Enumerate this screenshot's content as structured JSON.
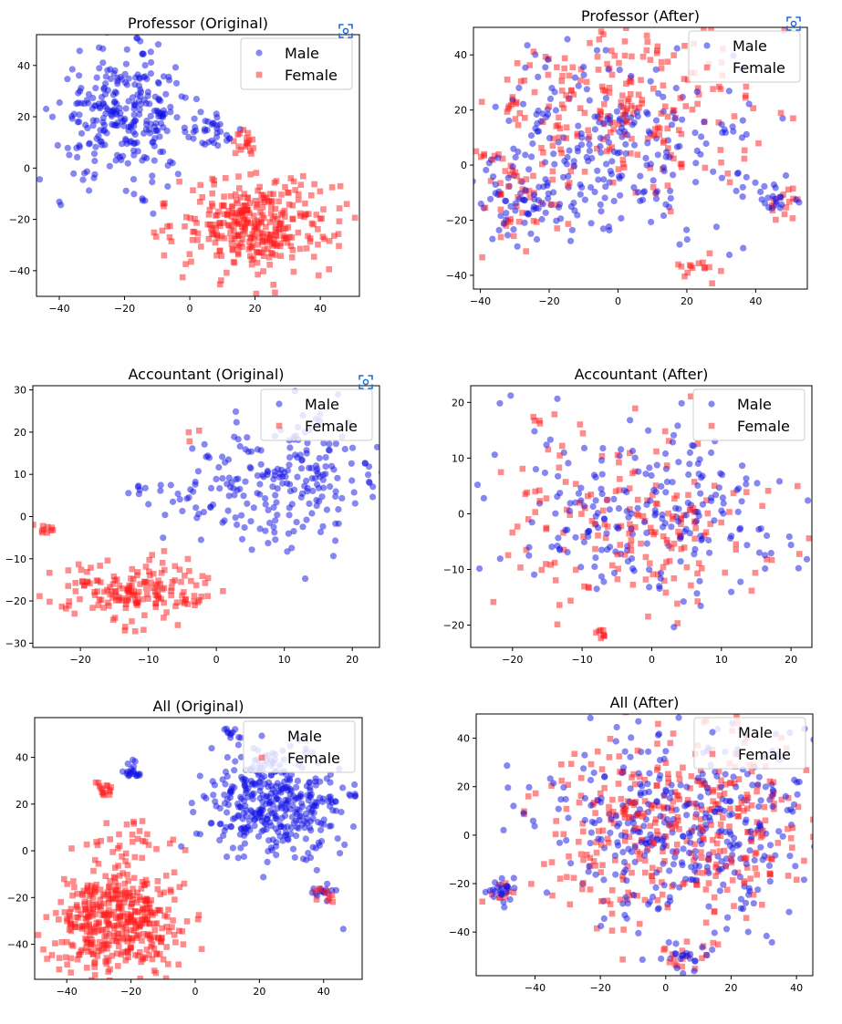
{
  "colors": {
    "male": "#1010e6",
    "female": "#ff1a1a",
    "axis": "#000000",
    "background": "#ffffff",
    "icon": "#1f6fd6"
  },
  "icon_names": [
    "screenshot-capture-icon"
  ],
  "chart_data": [
    {
      "type": "scatter",
      "title": "Professor (Original)",
      "xlabel": "",
      "ylabel": "",
      "xlim": [
        -47,
        52
      ],
      "ylim": [
        -50,
        52
      ],
      "xticks": [
        -40,
        -20,
        0,
        20,
        40
      ],
      "yticks": [
        -40,
        -20,
        0,
        20,
        40
      ],
      "legend": {
        "location": "top-right",
        "entries": [
          "Male",
          "Female"
        ]
      },
      "has_capture_icon": true,
      "series": [
        {
          "name": "Male",
          "marker": "circle",
          "clusters": [
            {
              "center": [
                -20,
                20
              ],
              "spread": [
                10,
                12
              ],
              "count": 280
            },
            {
              "center": [
                8,
                14
              ],
              "spread": [
                4,
                4
              ],
              "count": 30
            }
          ]
        },
        {
          "name": "Female",
          "marker": "square",
          "clusters": [
            {
              "center": [
                20,
                -22
              ],
              "spread": [
                12,
                9
              ],
              "count": 330
            },
            {
              "center": [
                16,
                10
              ],
              "spread": [
                2,
                3
              ],
              "count": 18
            },
            {
              "center": [
                -7,
                -14
              ],
              "spread": [
                1,
                1
              ],
              "count": 3
            }
          ]
        }
      ]
    },
    {
      "type": "scatter",
      "title": "Professor (After)",
      "xlabel": "",
      "ylabel": "",
      "xlim": [
        -42,
        55
      ],
      "ylim": [
        -45,
        50
      ],
      "xticks": [
        -40,
        -20,
        0,
        20,
        40
      ],
      "yticks": [
        -40,
        -20,
        0,
        20,
        40
      ],
      "legend": {
        "location": "top-right",
        "entries": [
          "Male",
          "Female"
        ]
      },
      "has_capture_icon": true,
      "series": [
        {
          "name": "Male",
          "marker": "circle",
          "clusters": [
            {
              "center": [
                0,
                5
              ],
              "spread": [
                20,
                18
              ],
              "count": 260
            },
            {
              "center": [
                -28,
                -12
              ],
              "spread": [
                7,
                8
              ],
              "count": 50
            },
            {
              "center": [
                45,
                -13
              ],
              "spread": [
                4,
                3
              ],
              "count": 20
            }
          ]
        },
        {
          "name": "Female",
          "marker": "square",
          "clusters": [
            {
              "center": [
                0,
                20
              ],
              "spread": [
                20,
                15
              ],
              "count": 230
            },
            {
              "center": [
                -28,
                -10
              ],
              "spread": [
                7,
                8
              ],
              "count": 50
            },
            {
              "center": [
                23,
                -38
              ],
              "spread": [
                3,
                2
              ],
              "count": 15
            },
            {
              "center": [
                48,
                -13
              ],
              "spread": [
                3,
                3
              ],
              "count": 15
            }
          ]
        }
      ]
    },
    {
      "type": "scatter",
      "title": "Accountant (Original)",
      "xlabel": "",
      "ylabel": "",
      "xlim": [
        -27,
        24
      ],
      "ylim": [
        -31,
        31
      ],
      "xticks": [
        -20,
        -10,
        0,
        10,
        20
      ],
      "yticks": [
        -30,
        -20,
        -10,
        0,
        10,
        20,
        30
      ],
      "legend": {
        "location": "top-right",
        "entries": [
          "Male",
          "Female"
        ]
      },
      "has_capture_icon": true,
      "series": [
        {
          "name": "Male",
          "marker": "circle",
          "clusters": [
            {
              "center": [
                10,
                8
              ],
              "spread": [
                7,
                8
              ],
              "count": 220
            },
            {
              "center": [
                -4,
                4
              ],
              "spread": [
                4,
                3
              ],
              "count": 20
            },
            {
              "center": [
                -12,
                6
              ],
              "spread": [
                1,
                1
              ],
              "count": 6
            }
          ]
        },
        {
          "name": "Female",
          "marker": "square",
          "clusters": [
            {
              "center": [
                -12,
                -18
              ],
              "spread": [
                6,
                4
              ],
              "count": 170
            },
            {
              "center": [
                -25,
                -3
              ],
              "spread": [
                0.6,
                0.6
              ],
              "count": 10
            },
            {
              "center": [
                -3,
                20
              ],
              "spread": [
                1,
                1
              ],
              "count": 3
            }
          ]
        }
      ]
    },
    {
      "type": "scatter",
      "title": "Accountant (After)",
      "xlabel": "",
      "ylabel": "",
      "xlim": [
        -26,
        23
      ],
      "ylim": [
        -24,
        23
      ],
      "xticks": [
        -20,
        -10,
        0,
        10,
        20
      ],
      "yticks": [
        -20,
        -10,
        0,
        10,
        20
      ],
      "legend": {
        "location": "top-right",
        "entries": [
          "Male",
          "Female"
        ]
      },
      "has_capture_icon": false,
      "series": [
        {
          "name": "Male",
          "marker": "circle",
          "clusters": [
            {
              "center": [
                0,
                0
              ],
              "spread": [
                11,
                8
              ],
              "count": 230
            }
          ]
        },
        {
          "name": "Female",
          "marker": "square",
          "clusters": [
            {
              "center": [
                -2,
                -2
              ],
              "spread": [
                10,
                8
              ],
              "count": 180
            },
            {
              "center": [
                -7,
                -21.5
              ],
              "spread": [
                0.6,
                0.5
              ],
              "count": 8
            },
            {
              "center": [
                -16,
                17
              ],
              "spread": [
                0.8,
                0.6
              ],
              "count": 5
            }
          ]
        }
      ]
    },
    {
      "type": "scatter",
      "title": "All (Original)",
      "xlabel": "",
      "ylabel": "",
      "xlim": [
        -50,
        52
      ],
      "ylim": [
        -55,
        57
      ],
      "xticks": [
        -40,
        -20,
        0,
        20,
        40
      ],
      "yticks": [
        -40,
        -20,
        0,
        20,
        40
      ],
      "legend": {
        "location": "top-right",
        "entries": [
          "Male",
          "Female"
        ]
      },
      "has_capture_icon": false,
      "series": [
        {
          "name": "Male",
          "marker": "circle",
          "clusters": [
            {
              "center": [
                25,
                20
              ],
              "spread": [
                11,
                12
              ],
              "count": 380
            },
            {
              "center": [
                -20,
                34
              ],
              "spread": [
                2,
                2
              ],
              "count": 20
            },
            {
              "center": [
                40,
                -18
              ],
              "spread": [
                2,
                2
              ],
              "count": 15
            },
            {
              "center": [
                12,
                50
              ],
              "spread": [
                2,
                2
              ],
              "count": 10
            }
          ]
        },
        {
          "name": "Female",
          "marker": "square",
          "clusters": [
            {
              "center": [
                -25,
                -30
              ],
              "spread": [
                11,
                11
              ],
              "count": 420
            },
            {
              "center": [
                -28,
                26
              ],
              "spread": [
                1.5,
                1.5
              ],
              "count": 15
            },
            {
              "center": [
                -20,
                5
              ],
              "spread": [
                6,
                6
              ],
              "count": 30
            },
            {
              "center": [
                40,
                -18
              ],
              "spread": [
                2,
                2
              ],
              "count": 10
            }
          ]
        }
      ]
    },
    {
      "type": "scatter",
      "title": "All (After)",
      "xlabel": "",
      "ylabel": "",
      "xlim": [
        -58,
        45
      ],
      "ylim": [
        -58,
        50
      ],
      "xticks": [
        -40,
        -20,
        0,
        20,
        40
      ],
      "yticks": [
        -40,
        -20,
        0,
        20,
        40
      ],
      "legend": {
        "location": "top-right",
        "entries": [
          "Male",
          "Female"
        ]
      },
      "has_capture_icon": false,
      "series": [
        {
          "name": "Male",
          "marker": "circle",
          "clusters": [
            {
              "center": [
                5,
                5
              ],
              "spread": [
                22,
                20
              ],
              "count": 380
            },
            {
              "center": [
                -50,
                -23
              ],
              "spread": [
                2.5,
                2.5
              ],
              "count": 25
            },
            {
              "center": [
                5,
                -50
              ],
              "spread": [
                4,
                3
              ],
              "count": 20
            }
          ]
        },
        {
          "name": "Female",
          "marker": "square",
          "clusters": [
            {
              "center": [
                5,
                5
              ],
              "spread": [
                22,
                20
              ],
              "count": 380
            },
            {
              "center": [
                -50,
                -23
              ],
              "spread": [
                2.5,
                2.5
              ],
              "count": 10
            },
            {
              "center": [
                5,
                -50
              ],
              "spread": [
                4,
                3
              ],
              "count": 15
            }
          ]
        }
      ]
    }
  ]
}
